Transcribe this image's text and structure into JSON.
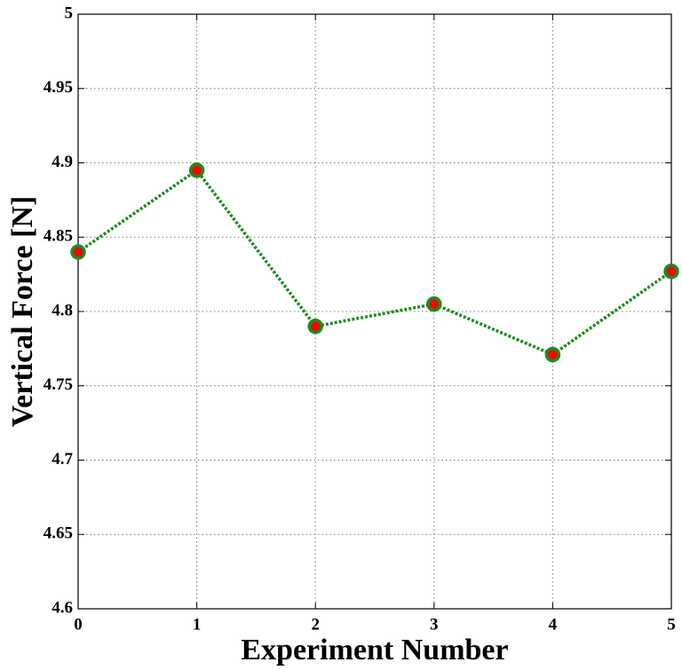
{
  "chart_data": {
    "type": "line",
    "x_label": "Experiment Number",
    "y_label": "Vertical Force [N]",
    "x": [
      0,
      1,
      2,
      3,
      4,
      5
    ],
    "values": [
      4.84,
      4.895,
      4.79,
      4.805,
      4.771,
      4.827
    ],
    "color": "#1e8c1e",
    "marker_color": "#ff0000",
    "xlim": [
      0,
      5
    ],
    "ylim": [
      4.6,
      5
    ],
    "xticks": [
      0,
      1,
      2,
      3,
      4,
      5
    ],
    "yticks": [
      4.6,
      4.65,
      4.7,
      4.75,
      4.8,
      4.85,
      4.9,
      4.95,
      5
    ],
    "grid": true
  }
}
